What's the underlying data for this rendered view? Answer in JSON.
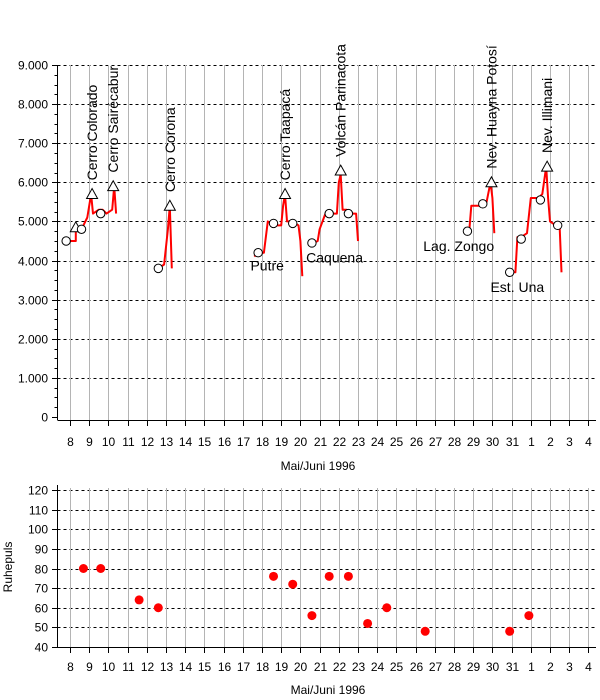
{
  "chart_data": [
    {
      "type": "line",
      "title": "",
      "xlabel": "Mai/Juni 1996",
      "ylabel": "",
      "ylim": [
        0,
        9000
      ],
      "yticks": [
        "0",
        "1.000",
        "2.000",
        "3.000",
        "4.000",
        "5.000",
        "6.000",
        "7.000",
        "8.000",
        "9.000"
      ],
      "x_tick_labels": [
        "8",
        "9",
        "10",
        "11",
        "12",
        "13",
        "14",
        "15",
        "16",
        "17",
        "18",
        "19",
        "20",
        "21",
        "22",
        "23",
        "24",
        "25",
        "26",
        "27",
        "28",
        "29",
        "30",
        "31",
        "1",
        "2",
        "3",
        "4"
      ],
      "grid": "horizontal dashed",
      "line_color": "#ff0000",
      "series": [
        {
          "segments": [
            [
              [
                7.8,
                4500
              ],
              [
                8.3,
                4500
              ],
              [
                8.3,
                4800
              ],
              [
                8.6,
                4800
              ],
              [
                8.9,
                5100
              ],
              [
                9.1,
                5700
              ],
              [
                9.2,
                5200
              ],
              [
                9.5,
                5300
              ],
              [
                9.7,
                5300
              ],
              [
                9.9,
                5200
              ],
              [
                10.2,
                5300
              ],
              [
                10.3,
                5900
              ],
              [
                10.4,
                5200
              ]
            ],
            [
              [
                12.6,
                3800
              ],
              [
                12.9,
                3900
              ],
              [
                13.1,
                4800
              ],
              [
                13.2,
                5400
              ],
              [
                13.3,
                3800
              ]
            ],
            [
              [
                17.6,
                4100
              ],
              [
                17.8,
                4200
              ],
              [
                18.1,
                4200
              ],
              [
                18.3,
                5000
              ],
              [
                18.6,
                4900
              ],
              [
                19.0,
                4900
              ],
              [
                19.1,
                5400
              ],
              [
                19.2,
                5700
              ],
              [
                19.3,
                5000
              ],
              [
                19.6,
                5000
              ],
              [
                19.9,
                4900
              ],
              [
                20.0,
                4500
              ],
              [
                20.1,
                3600
              ]
            ],
            [
              [
                20.5,
                4400
              ],
              [
                20.9,
                4500
              ],
              [
                21.0,
                4800
              ],
              [
                21.3,
                5200
              ],
              [
                21.6,
                5200
              ],
              [
                21.9,
                5200
              ],
              [
                22.0,
                6000
              ],
              [
                22.1,
                6200
              ],
              [
                22.2,
                5300
              ],
              [
                22.4,
                5300
              ],
              [
                22.7,
                5200
              ],
              [
                22.9,
                5200
              ],
              [
                23.0,
                4500
              ]
            ],
            [
              [
                28.5,
                4700
              ],
              [
                28.8,
                4800
              ],
              [
                28.9,
                5400
              ],
              [
                29.2,
                5400
              ],
              [
                29.5,
                5400
              ],
              [
                29.7,
                5500
              ],
              [
                29.9,
                6000
              ],
              [
                30.0,
                5600
              ],
              [
                30.1,
                4700
              ]
            ],
            [
              [
                30.9,
                3700
              ],
              [
                31.2,
                3700
              ],
              [
                31.3,
                4600
              ],
              [
                31.5,
                4600
              ],
              [
                31.8,
                4700
              ],
              [
                32.0,
                5600
              ],
              [
                32.4,
                5600
              ],
              [
                32.6,
                5700
              ],
              [
                32.8,
                6400
              ],
              [
                32.9,
                5600
              ],
              [
                33.0,
                5000
              ],
              [
                33.3,
                4900
              ],
              [
                33.5,
                4900
              ],
              [
                33.6,
                3700
              ]
            ]
          ]
        }
      ],
      "markers": [
        {
          "x": 7.8,
          "y": 4500,
          "shape": "circle"
        },
        {
          "x": 8.3,
          "y": 4850,
          "shape": "triangle"
        },
        {
          "x": 8.6,
          "y": 4800,
          "shape": "circle"
        },
        {
          "x": 9.15,
          "y": 5700,
          "shape": "triangle"
        },
        {
          "x": 9.6,
          "y": 5200,
          "shape": "circle"
        },
        {
          "x": 10.25,
          "y": 5900,
          "shape": "triangle"
        },
        {
          "x": 12.6,
          "y": 3800,
          "shape": "circle"
        },
        {
          "x": 13.2,
          "y": 5400,
          "shape": "triangle"
        },
        {
          "x": 17.8,
          "y": 4200,
          "shape": "circle"
        },
        {
          "x": 18.6,
          "y": 4950,
          "shape": "circle"
        },
        {
          "x": 19.2,
          "y": 5700,
          "shape": "triangle"
        },
        {
          "x": 19.6,
          "y": 4950,
          "shape": "circle"
        },
        {
          "x": 20.6,
          "y": 4450,
          "shape": "circle"
        },
        {
          "x": 21.5,
          "y": 5200,
          "shape": "circle"
        },
        {
          "x": 22.1,
          "y": 6300,
          "shape": "triangle"
        },
        {
          "x": 22.5,
          "y": 5200,
          "shape": "circle"
        },
        {
          "x": 28.7,
          "y": 4750,
          "shape": "circle"
        },
        {
          "x": 29.5,
          "y": 5450,
          "shape": "circle"
        },
        {
          "x": 29.95,
          "y": 6000,
          "shape": "triangle"
        },
        {
          "x": 30.9,
          "y": 3700,
          "shape": "circle"
        },
        {
          "x": 31.5,
          "y": 4550,
          "shape": "circle"
        },
        {
          "x": 32.5,
          "y": 5550,
          "shape": "circle"
        },
        {
          "x": 32.85,
          "y": 6400,
          "shape": "triangle"
        },
        {
          "x": 33.4,
          "y": 4900,
          "shape": "circle"
        }
      ],
      "annotations": [
        {
          "text": "Cerro Colorado",
          "x": 9.15,
          "y": 6050,
          "rotate": true
        },
        {
          "text": "Cerro Sairécabur",
          "x": 10.25,
          "y": 6250,
          "rotate": true
        },
        {
          "text": "Cerro Corona",
          "x": 13.2,
          "y": 5750,
          "rotate": true
        },
        {
          "text": "Cerro Taapacá",
          "x": 19.2,
          "y": 6050,
          "rotate": true
        },
        {
          "text": "Volcán Parinacota",
          "x": 22.1,
          "y": 6650,
          "rotate": true
        },
        {
          "text": "Nev. Huayna Potosí",
          "x": 29.95,
          "y": 6350,
          "rotate": true
        },
        {
          "text": "Nev. Illimani",
          "x": 32.85,
          "y": 6750,
          "rotate": true
        },
        {
          "text": "Putre",
          "x": 17.4,
          "y": 3750,
          "rotate": false
        },
        {
          "text": "Caquena",
          "x": 20.3,
          "y": 3950,
          "rotate": false
        },
        {
          "text": "Lag. Zongo",
          "x": 26.4,
          "y": 4250,
          "rotate": false
        },
        {
          "text": "Est. Una",
          "x": 29.9,
          "y": 3200,
          "rotate": false
        }
      ]
    },
    {
      "type": "scatter",
      "title": "",
      "xlabel": "Mai/Juni 1996",
      "ylabel": "Ruhepuls",
      "ylim": [
        40,
        120
      ],
      "yticks": [
        "40",
        "50",
        "60",
        "70",
        "80",
        "90",
        "100",
        "110",
        "120"
      ],
      "x_tick_labels": [
        "8",
        "9",
        "10",
        "11",
        "12",
        "13",
        "14",
        "15",
        "16",
        "17",
        "18",
        "19",
        "20",
        "21",
        "22",
        "23",
        "24",
        "25",
        "26",
        "27",
        "28",
        "29",
        "30",
        "31",
        "1",
        "2",
        "3",
        "4"
      ],
      "grid": "horizontal dashed",
      "marker_color": "#ff0000",
      "points": [
        {
          "x": 8.7,
          "y": 80
        },
        {
          "x": 9.6,
          "y": 80
        },
        {
          "x": 11.6,
          "y": 64
        },
        {
          "x": 12.6,
          "y": 60
        },
        {
          "x": 18.6,
          "y": 76
        },
        {
          "x": 19.6,
          "y": 72
        },
        {
          "x": 20.6,
          "y": 56
        },
        {
          "x": 21.5,
          "y": 76
        },
        {
          "x": 22.5,
          "y": 76
        },
        {
          "x": 23.5,
          "y": 52
        },
        {
          "x": 24.5,
          "y": 60
        },
        {
          "x": 26.5,
          "y": 48
        },
        {
          "x": 30.9,
          "y": 48
        },
        {
          "x": 31.9,
          "y": 56
        }
      ]
    }
  ]
}
